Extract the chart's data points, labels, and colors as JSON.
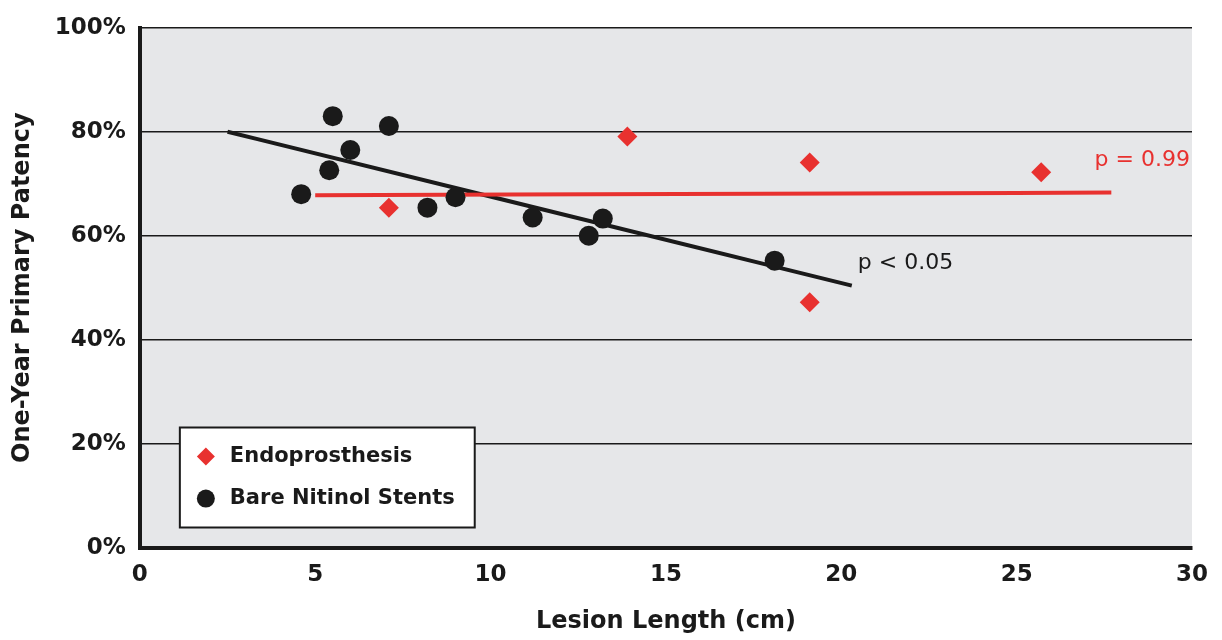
{
  "chart_data": {
    "type": "scatter",
    "xlabel": "Lesion Length (cm)",
    "ylabel": "One-Year Primary Patency",
    "xlim": [
      0,
      30
    ],
    "xticks": [
      0,
      5,
      10,
      15,
      20,
      25,
      30
    ],
    "ylim": [
      0,
      100
    ],
    "yticks": [
      {
        "value": 0,
        "label": "0%"
      },
      {
        "value": 20,
        "label": "20%"
      },
      {
        "value": 40,
        "label": "40%"
      },
      {
        "value": 60,
        "label": "60%"
      },
      {
        "value": 80,
        "label": "80%"
      },
      {
        "value": 100,
        "label": "100%"
      }
    ],
    "grid": "y",
    "legend": "bottom left",
    "series": [
      {
        "name": "Endoprosthesis",
        "marker": "diamond",
        "color": "#e8312f",
        "x": [
          7.1,
          13.9,
          19.1,
          19.1,
          25.7
        ],
        "values": [
          65.4,
          79.1,
          74.1,
          47.2,
          72.2
        ]
      },
      {
        "name": "Bare Nitinol Stents",
        "marker": "circle",
        "color": "#1a1a1a",
        "x": [
          4.6,
          5.4,
          5.5,
          6.0,
          7.1,
          8.2,
          9.0,
          11.2,
          12.8,
          13.2,
          18.1
        ],
        "values": [
          68.0,
          72.6,
          83.0,
          76.5,
          81.1,
          65.4,
          67.4,
          63.5,
          60.0,
          63.3,
          55.2
        ]
      },
      {
        "type": "line",
        "marker": "none",
        "color": "#e8312f",
        "x": [
          5.0,
          27.7
        ],
        "values": [
          67.8,
          68.3
        ]
      },
      {
        "type": "line",
        "marker": "none",
        "color": "#1a1a1a",
        "x": [
          2.5,
          20.3
        ],
        "values": [
          80.0,
          50.4
        ]
      }
    ],
    "annotations": [
      "p = 0.99",
      "p < 0.05"
    ]
  }
}
